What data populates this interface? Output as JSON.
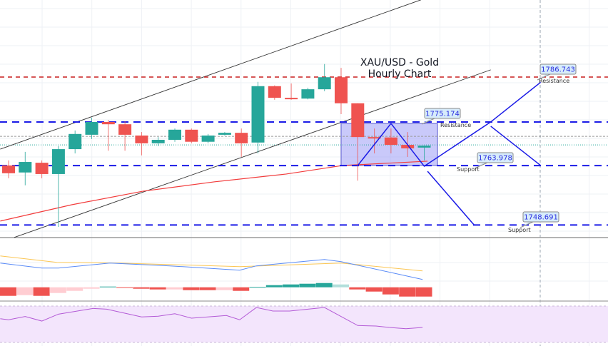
{
  "chart_data": {
    "type": "candlestick",
    "title": [
      "XAU/USD - Gold",
      "Hourly Chart"
    ],
    "colors": {
      "up": "#26a69a",
      "down": "#ef5350",
      "ma": "#f23c3c",
      "channel": "#333333",
      "levels": "#1a1ae6",
      "resistance_top": "#c81e1e",
      "box": "#9c9cf5",
      "macd": "#5b8cf7",
      "signal": "#fbc654",
      "rsi": "#b35ad6",
      "rsi_band": "#f3e5fc"
    },
    "candles_ohlc": [
      [
        1764.0,
        1765.3,
        1760.7,
        1762.0
      ],
      [
        1762.2,
        1767.5,
        1758.9,
        1764.9
      ],
      [
        1764.7,
        1765.3,
        1760.7,
        1761.8
      ],
      [
        1761.8,
        1769.0,
        1748.2,
        1768.2
      ],
      [
        1768.2,
        1773.0,
        1767.1,
        1772.1
      ],
      [
        1771.9,
        1776.3,
        1770.8,
        1775.2
      ],
      [
        1775.2,
        1775.7,
        1767.8,
        1774.6
      ],
      [
        1774.6,
        1775.4,
        1767.8,
        1771.9
      ],
      [
        1771.7,
        1772.6,
        1766.6,
        1769.7
      ],
      [
        1769.7,
        1771.3,
        1769.0,
        1770.6
      ],
      [
        1770.6,
        1773.5,
        1770.1,
        1773.2
      ],
      [
        1773.2,
        1773.5,
        1769.7,
        1770.1
      ],
      [
        1770.1,
        1772.1,
        1769.7,
        1771.7
      ],
      [
        1771.9,
        1772.6,
        1771.7,
        1772.4
      ],
      [
        1772.4,
        1773.5,
        1766.2,
        1769.7
      ],
      [
        1769.9,
        1785.5,
        1767.1,
        1784.4
      ],
      [
        1784.4,
        1784.6,
        1780.9,
        1781.4
      ],
      [
        1781.4,
        1785.1,
        1780.9,
        1781.1
      ],
      [
        1781.2,
        1784.0,
        1781.0,
        1783.6
      ],
      [
        1783.6,
        1790.1,
        1783.1,
        1786.7
      ],
      [
        1786.7,
        1789.1,
        1777.2,
        1780.0
      ],
      [
        1780.0,
        1780.0,
        1760.1,
        1771.3
      ],
      [
        1771.3,
        1773.5,
        1767.1,
        1771.2
      ],
      [
        1771.2,
        1773.5,
        1767.1,
        1769.3
      ],
      [
        1769.3,
        1772.6,
        1766.2,
        1768.4
      ],
      [
        1768.6,
        1769.1,
        1765.3,
        1769.1
      ]
    ],
    "levels": [
      {
        "price": 1786.743,
        "label": "1786.743",
        "tag": "Resistance",
        "style": "red-dashed"
      },
      {
        "price": 1775.174,
        "label": "1775.174",
        "tag": "Resistance",
        "style": "blue-dashed"
      },
      {
        "price": 1763.978,
        "label": "1763.978",
        "tag": "Support",
        "style": "blue-dashed"
      },
      {
        "price": 1748.691,
        "label": "1748.691",
        "tag": "Support",
        "style": "blue-dashed"
      }
    ],
    "current_prices": [
      1771.5,
      1769.3
    ],
    "channel": [
      [
        [
          -0.5,
          1768.2
        ],
        [
          24.8,
          1806.6
        ]
      ],
      [
        [
          0.34,
          1745.5
        ],
        [
          29.0,
          1788.6
        ]
      ]
    ],
    "moving_average": [
      [
        -0.5,
        1749.7
      ],
      [
        3.8,
        1753.9
      ],
      [
        8.1,
        1757.4
      ],
      [
        12.4,
        1759.8
      ],
      [
        16.7,
        1761.8
      ],
      [
        20.1,
        1764.0
      ],
      [
        25.2,
        1765.1
      ]
    ],
    "range_box": {
      "from": 20,
      "to": 25.8,
      "top": 1774.8,
      "bottom": 1764.0
    },
    "projections": [
      [
        [
          21,
          1764.0
        ],
        [
          23,
          1774.8
        ],
        [
          25,
          1763.8
        ],
        [
          29,
          1775.2
        ],
        [
          32,
          1785.4
        ]
      ],
      [
        [
          29,
          1774.1
        ],
        [
          32,
          1764.0
        ]
      ],
      [
        [
          25.2,
          1762.5
        ],
        [
          28,
          1748.7
        ]
      ]
    ],
    "macd": {
      "macd_line": [
        [
          -0.5,
          34
        ],
        [
          2.0,
          27
        ],
        [
          3.0,
          27
        ],
        [
          6.1,
          34
        ],
        [
          9.7,
          30
        ],
        [
          13.9,
          24
        ],
        [
          14.9,
          30
        ],
        [
          19.0,
          39
        ],
        [
          20.0,
          36
        ],
        [
          24.9,
          11
        ]
      ],
      "signal_line": [
        [
          -0.5,
          44
        ],
        [
          2.9,
          35
        ],
        [
          6.6,
          34
        ],
        [
          13.9,
          29
        ],
        [
          20.0,
          34
        ],
        [
          24.9,
          23
        ]
      ],
      "histogram": [
        -12,
        -11,
        -12,
        -8,
        -5,
        -2,
        1,
        -1,
        -2,
        -3,
        -3,
        -4,
        -4,
        -4,
        -5,
        0.5,
        3,
        4,
        5,
        6,
        4,
        -3,
        -6,
        -10,
        -13,
        -13
      ]
    },
    "rsi": {
      "band": [
        30,
        70
      ],
      "values": [
        [
          -0.5,
          56.1
        ],
        [
          0.0,
          54.9
        ],
        [
          1.0,
          58.5
        ],
        [
          2.0,
          53.5
        ],
        [
          3.0,
          61.1
        ],
        [
          5.1,
          67.4
        ],
        [
          5.9,
          66.6
        ],
        [
          8.0,
          58.0
        ],
        [
          9.0,
          58.8
        ],
        [
          10.0,
          61.6
        ],
        [
          11.0,
          56.7
        ],
        [
          13.1,
          59.6
        ],
        [
          13.9,
          54.9
        ],
        [
          14.9,
          68.4
        ],
        [
          15.9,
          64.5
        ],
        [
          16.9,
          64.5
        ],
        [
          19.0,
          68.4
        ],
        [
          21.0,
          48.6
        ],
        [
          22.1,
          48.0
        ],
        [
          22.9,
          46.5
        ],
        [
          23.9,
          45.1
        ],
        [
          24.9,
          46.5
        ]
      ]
    }
  }
}
